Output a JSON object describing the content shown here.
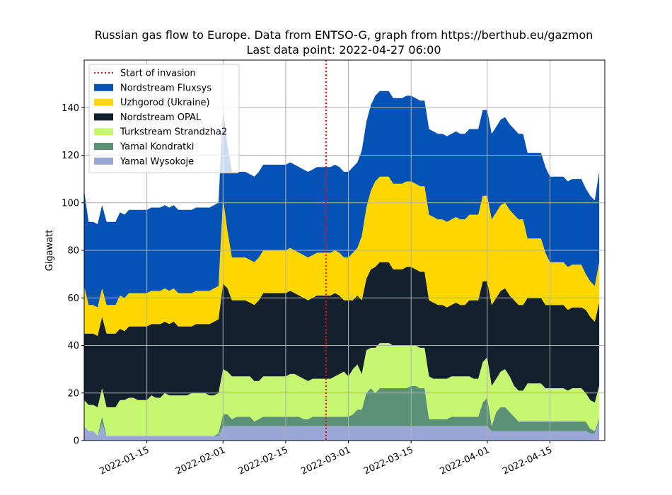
{
  "chart_data": {
    "type": "area",
    "title": "Russian gas flow to Europe. Data from ENTSO-G, graph from https://berthub.eu/gazmon",
    "subtitle": "Last data point: 2022-04-27 06:00",
    "xlabel": "",
    "ylabel": "Gigawatt",
    "ylim": [
      0,
      160
    ],
    "xlim": [
      "2022-01-01",
      "2022-04-27"
    ],
    "yticks": [
      0,
      20,
      40,
      60,
      80,
      100,
      120,
      140
    ],
    "xticks": [
      "2022-01-15",
      "2022-02-01",
      "2022-02-15",
      "2022-03-01",
      "2022-03-15",
      "2022-04-01",
      "2022-04-15"
    ],
    "grid": true,
    "stacked": true,
    "legend_position": "top-left",
    "annotation": {
      "label": "Start of invasion",
      "x": "2022-02-24",
      "color": "#ff0000",
      "style": "dotted"
    },
    "x_start": "2022-01-01",
    "x_step_days": 1,
    "series": [
      {
        "name": "Yamal Wysokoje",
        "color": "#9aa8d8",
        "values": [
          6,
          4,
          4,
          2,
          7,
          2,
          2,
          2,
          2,
          2,
          2,
          2,
          2,
          2,
          2,
          2,
          2,
          2,
          2,
          2,
          2,
          2,
          2,
          2,
          2,
          2,
          2,
          2,
          2,
          2,
          2,
          6,
          6,
          6,
          6,
          6,
          6,
          6,
          6,
          6,
          6,
          6,
          6,
          6,
          6,
          6,
          6,
          6,
          6,
          6,
          6,
          6,
          6,
          6,
          6,
          6,
          6,
          6,
          6,
          6,
          6,
          6,
          6,
          6,
          6,
          6,
          6,
          6,
          6,
          6,
          6,
          6,
          6,
          6,
          6,
          6,
          6,
          6,
          6,
          6,
          6,
          6,
          6,
          6,
          6,
          6,
          6,
          6,
          6,
          6,
          6,
          4,
          4,
          4,
          4,
          4,
          4,
          4,
          4,
          4,
          4,
          4,
          4,
          4,
          4,
          4,
          4,
          4,
          4,
          4,
          4,
          4,
          4,
          3,
          3,
          8
        ]
      },
      {
        "name": "Yamal Kondratki",
        "color": "#5a9177",
        "values": [
          0,
          0,
          0,
          0,
          3,
          0,
          0,
          0,
          0,
          0,
          0,
          0,
          0,
          0,
          0,
          0,
          0,
          0,
          0,
          0,
          0,
          0,
          0,
          0,
          0,
          0,
          0,
          0,
          0,
          0,
          1,
          5,
          5,
          3,
          4,
          4,
          4,
          4,
          2,
          3,
          4,
          4,
          4,
          4,
          4,
          4,
          4,
          4,
          4,
          3,
          3,
          4,
          4,
          4,
          4,
          4,
          4,
          4,
          4,
          4,
          5,
          7,
          7,
          14,
          16,
          14,
          16,
          16,
          16,
          16,
          16,
          16,
          16,
          17,
          17,
          16,
          16,
          3,
          3,
          3,
          3,
          3,
          4,
          4,
          4,
          4,
          4,
          4,
          4,
          10,
          12,
          2,
          8,
          10,
          10,
          8,
          6,
          4,
          4,
          4,
          4,
          4,
          4,
          4,
          4,
          4,
          4,
          4,
          4,
          4,
          4,
          4,
          4,
          2,
          1,
          1
        ]
      },
      {
        "name": "Turkstream Strandzha2",
        "color": "#c5f771",
        "values": [
          11,
          11,
          11,
          12,
          12,
          12,
          12,
          12,
          15,
          15,
          16,
          16,
          15,
          15,
          15,
          17,
          16,
          16,
          18,
          17,
          17,
          17,
          17,
          17,
          18,
          18,
          18,
          18,
          17,
          17,
          17,
          19,
          18,
          18,
          17,
          17,
          17,
          17,
          17,
          16,
          17,
          17,
          17,
          17,
          17,
          17,
          18,
          18,
          17,
          17,
          16,
          16,
          16,
          16,
          16,
          16,
          17,
          18,
          19,
          17,
          19,
          19,
          15,
          18,
          17,
          19,
          19,
          19,
          19,
          18,
          18,
          18,
          18,
          17,
          17,
          17,
          17,
          18,
          17,
          17,
          17,
          17,
          17,
          17,
          17,
          17,
          17,
          16,
          16,
          17,
          17,
          17,
          14,
          15,
          16,
          15,
          13,
          13,
          13,
          16,
          16,
          16,
          16,
          14,
          14,
          14,
          14,
          14,
          13,
          14,
          14,
          14,
          12,
          12,
          12,
          14
        ]
      },
      {
        "name": "Nordstream OPAL",
        "color": "#13212f",
        "values": [
          28,
          30,
          30,
          30,
          30,
          31,
          31,
          31,
          30,
          29,
          30,
          30,
          31,
          31,
          31,
          30,
          31,
          31,
          30,
          30,
          31,
          29,
          29,
          29,
          28,
          29,
          29,
          29,
          30,
          31,
          31,
          36,
          35,
          32,
          32,
          32,
          32,
          31,
          32,
          34,
          35,
          35,
          35,
          35,
          35,
          35,
          35,
          34,
          34,
          34,
          34,
          34,
          35,
          35,
          35,
          35,
          35,
          33,
          30,
          32,
          29,
          29,
          31,
          30,
          33,
          34,
          34,
          34,
          34,
          32,
          32,
          32,
          33,
          33,
          32,
          32,
          32,
          32,
          32,
          31,
          31,
          30,
          30,
          31,
          30,
          30,
          32,
          33,
          33,
          34,
          32,
          34,
          34,
          34,
          34,
          34,
          36,
          36,
          36,
          36,
          36,
          36,
          36,
          35,
          35,
          35,
          35,
          35,
          34,
          34,
          34,
          34,
          35,
          35,
          34,
          35
        ]
      },
      {
        "name": "Uzhgorod (Ukraine)",
        "color": "#ffd700",
        "values": [
          20,
          12,
          12,
          12,
          12,
          12,
          12,
          12,
          14,
          14,
          14,
          14,
          14,
          14,
          14,
          14,
          14,
          14,
          14,
          14,
          14,
          14,
          14,
          14,
          14,
          14,
          14,
          14,
          14,
          14,
          14,
          36,
          24,
          18,
          18,
          18,
          18,
          18,
          18,
          18,
          18,
          18,
          18,
          18,
          18,
          18,
          18,
          18,
          18,
          18,
          18,
          18,
          18,
          18,
          18,
          18,
          18,
          18,
          18,
          18,
          20,
          20,
          27,
          30,
          33,
          36,
          36,
          36,
          36,
          36,
          36,
          36,
          36,
          36,
          36,
          36,
          36,
          36,
          36,
          36,
          36,
          36,
          36,
          36,
          36,
          36,
          36,
          36,
          36,
          36,
          36,
          36,
          36,
          36,
          36,
          36,
          36,
          36,
          36,
          25,
          25,
          25,
          25,
          22,
          18,
          18,
          18,
          18,
          18,
          18,
          18,
          18,
          15,
          15,
          15,
          17
        ]
      },
      {
        "name": "Nordstream Fluxsys",
        "color": "#0452b5",
        "values": [
          40,
          35,
          35,
          35,
          35,
          35,
          35,
          35,
          35,
          35,
          35,
          35,
          35,
          35,
          35,
          35,
          35,
          35,
          35,
          35,
          35,
          35,
          35,
          35,
          35,
          35,
          35,
          35,
          35,
          35,
          35,
          38,
          36,
          36,
          36,
          36,
          36,
          36,
          36,
          36,
          36,
          36,
          36,
          36,
          36,
          36,
          36,
          36,
          36,
          36,
          36,
          36,
          36,
          36,
          36,
          36,
          36,
          36,
          36,
          36,
          36,
          36,
          36,
          36,
          36,
          36,
          36,
          36,
          36,
          36,
          36,
          36,
          36,
          36,
          36,
          36,
          36,
          36,
          36,
          36,
          36,
          36,
          36,
          36,
          36,
          36,
          36,
          36,
          36,
          36,
          36,
          36,
          36,
          36,
          36,
          36,
          36,
          36,
          36,
          36,
          36,
          36,
          36,
          36,
          36,
          36,
          36,
          36,
          36,
          36,
          36,
          36,
          36,
          36,
          36,
          38
        ]
      }
    ]
  }
}
